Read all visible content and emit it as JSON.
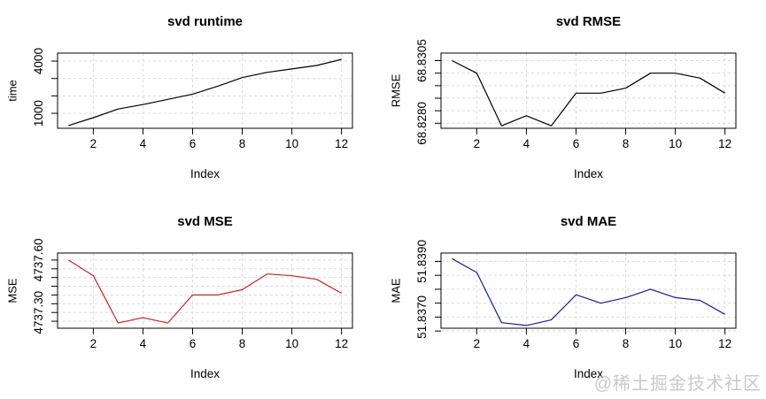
{
  "watermark": "@稀土掘金技术社区",
  "chart_data": [
    {
      "type": "line",
      "title": "svd runtime",
      "xlabel": "Index",
      "ylabel": "time",
      "x": [
        1,
        2,
        3,
        4,
        5,
        6,
        7,
        8,
        9,
        10,
        11,
        12
      ],
      "values": [
        300,
        750,
        1250,
        1500,
        1800,
        2100,
        2550,
        3050,
        3350,
        3550,
        3750,
        4100
      ],
      "color": "#000000",
      "grid_color": "#d9d9d9",
      "grid": true,
      "xlim": [
        0.56,
        12.44
      ],
      "ylim": [
        140,
        4460
      ],
      "xticks": [
        2,
        4,
        6,
        8,
        10,
        12
      ],
      "yticks": [
        {
          "v": 1000,
          "label": "1000"
        },
        {
          "v": 2000
        },
        {
          "v": 3000
        },
        {
          "v": 4000,
          "label": "4000"
        }
      ]
    },
    {
      "type": "line",
      "title": "svd RMSE",
      "xlabel": "Index",
      "ylabel": "RMSE",
      "x": [
        1,
        2,
        3,
        4,
        5,
        6,
        7,
        8,
        9,
        10,
        11,
        12
      ],
      "values": [
        68.8305,
        68.83,
        68.8279,
        68.8283,
        68.8279,
        68.8292,
        68.8292,
        68.8294,
        68.83,
        68.83,
        68.8298,
        68.8292
      ],
      "color": "#000000",
      "grid_color": "#d9d9d9",
      "grid": true,
      "xlim": [
        0.56,
        12.44
      ],
      "ylim": [
        68.8278,
        68.8308
      ],
      "xticks": [
        2,
        4,
        6,
        8,
        10,
        12
      ],
      "yticks": [
        {
          "v": 68.828,
          "label": "68.8280"
        },
        {
          "v": 68.8285
        },
        {
          "v": 68.829
        },
        {
          "v": 68.8295
        },
        {
          "v": 68.83
        },
        {
          "v": 68.8305,
          "label": "68.8305"
        }
      ]
    },
    {
      "type": "line",
      "title": "svd MSE",
      "xlabel": "Index",
      "ylabel": "MSE",
      "x": [
        1,
        2,
        3,
        4,
        5,
        6,
        7,
        8,
        9,
        10,
        11,
        12
      ],
      "values": [
        4737.6,
        4737.51,
        4737.24,
        4737.27,
        4737.24,
        4737.4,
        4737.4,
        4737.43,
        4737.52,
        4737.51,
        4737.49,
        4737.41
      ],
      "color": "#cc2222",
      "grid_color": "#d9d9d9",
      "grid": true,
      "xlim": [
        0.56,
        12.44
      ],
      "ylim": [
        4737.21,
        4737.64
      ],
      "xticks": [
        2,
        4,
        6,
        8,
        10,
        12
      ],
      "yticks": [
        {
          "v": 4737.25
        },
        {
          "v": 4737.3,
          "label": "4737.30"
        },
        {
          "v": 4737.35
        },
        {
          "v": 4737.4
        },
        {
          "v": 4737.45
        },
        {
          "v": 4737.5
        },
        {
          "v": 4737.55
        },
        {
          "v": 4737.6,
          "label": "4737.60"
        }
      ]
    },
    {
      "type": "line",
      "title": "svd MAE",
      "xlabel": "Index",
      "ylabel": "MAE",
      "x": [
        1,
        2,
        3,
        4,
        5,
        6,
        7,
        8,
        9,
        10,
        11,
        12
      ],
      "values": [
        51.8391,
        51.8386,
        51.8368,
        51.8367,
        51.8369,
        51.8378,
        51.8375,
        51.8377,
        51.838,
        51.8377,
        51.8376,
        51.8371
      ],
      "color": "#1a1aa0",
      "grid_color": "#d9d9d9",
      "grid": true,
      "xlim": [
        0.56,
        12.44
      ],
      "ylim": [
        51.8366,
        51.8393
      ],
      "xticks": [
        2,
        4,
        6,
        8,
        10,
        12
      ],
      "yticks": [
        {
          "v": 51.8365
        },
        {
          "v": 51.837,
          "label": "51.8370"
        },
        {
          "v": 51.8375
        },
        {
          "v": 51.838
        },
        {
          "v": 51.8385
        },
        {
          "v": 51.839,
          "label": "51.8390"
        }
      ]
    }
  ]
}
